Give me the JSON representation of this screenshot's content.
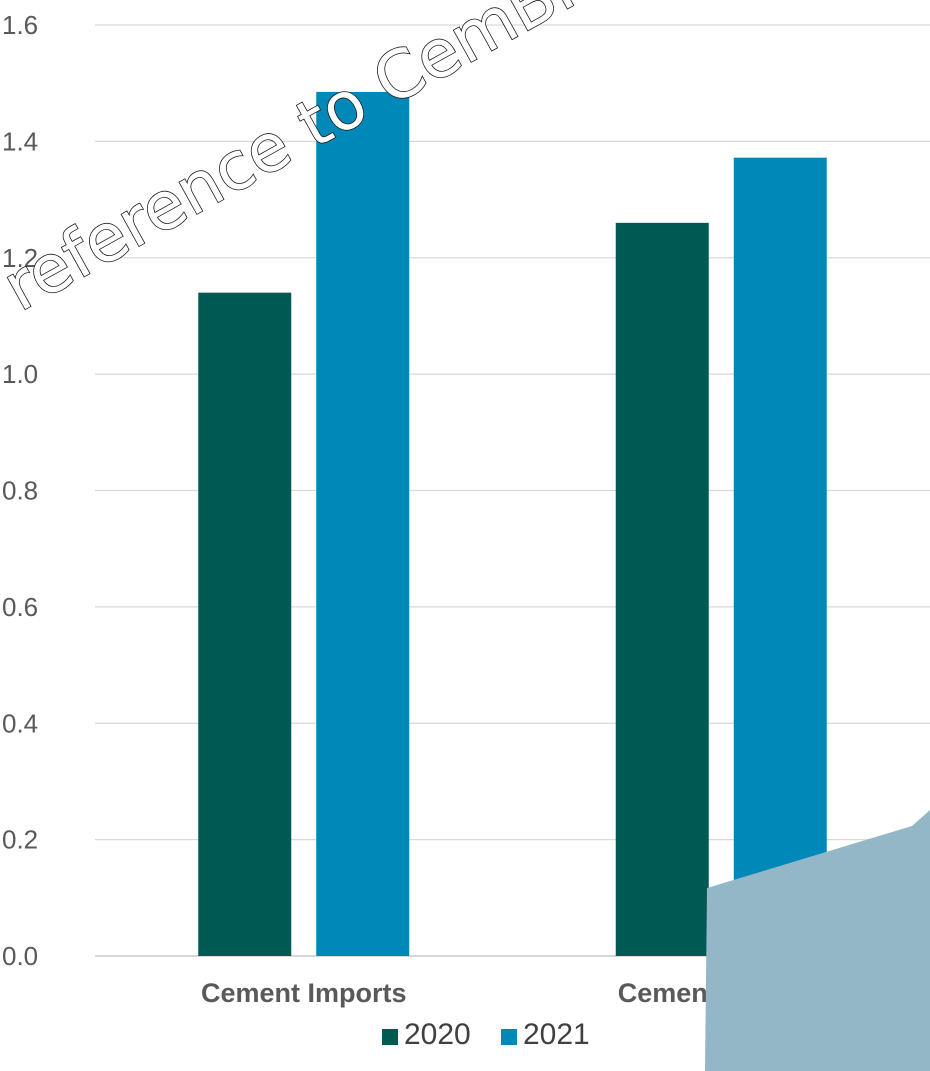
{
  "chart_data": {
    "type": "bar",
    "categories": [
      "Cement Imports",
      "Cement Exports"
    ],
    "series": [
      {
        "name": "2020",
        "values": [
          1.14,
          1.26
        ],
        "color": "#005953"
      },
      {
        "name": "2021",
        "values": [
          1.485,
          1.372
        ],
        "color": "#0089B8"
      }
    ],
    "yticks": [
      "0.0",
      "0.2",
      "0.4",
      "0.6",
      "0.8",
      "1.0",
      "1.2",
      "1.4",
      "1.6"
    ],
    "ylim": [
      0,
      1.6
    ],
    "grid": true,
    "legend_position": "bottom",
    "title": "",
    "xlabel": "",
    "ylabel": ""
  },
  "watermark": {
    "text": "reference to CemBR a"
  },
  "colors": {
    "gridline": "#d9d9d9",
    "axis": "#bfbfbf",
    "corner_accent": "#93b7c7"
  }
}
